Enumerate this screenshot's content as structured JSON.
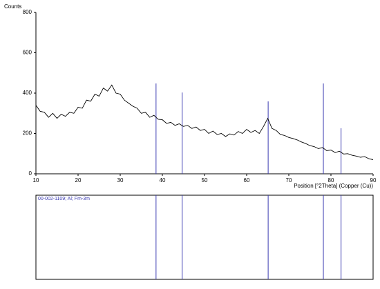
{
  "chart_data": {
    "type": "line",
    "y_label": "Counts",
    "x_label": "Position [°2Theta] (Copper (Cu))",
    "x": [
      10,
      11,
      12,
      13,
      14,
      15,
      16,
      17,
      18,
      19,
      20,
      21,
      22,
      23,
      24,
      25,
      26,
      27,
      28,
      29,
      30,
      31,
      32,
      33,
      34,
      35,
      36,
      37,
      38,
      39,
      40,
      41,
      42,
      43,
      44,
      45,
      46,
      47,
      48,
      49,
      50,
      51,
      52,
      53,
      54,
      55,
      56,
      57,
      58,
      59,
      60,
      61,
      62,
      63,
      64,
      65,
      66,
      67,
      68,
      69,
      70,
      71,
      72,
      73,
      74,
      75,
      76,
      77,
      78,
      79,
      80,
      81,
      82,
      83,
      84,
      85,
      86,
      87,
      88,
      89,
      90
    ],
    "series": [
      {
        "color": "#000000",
        "values": [
          340,
          310,
          305,
          280,
          300,
          275,
          295,
          285,
          305,
          300,
          330,
          325,
          365,
          360,
          395,
          385,
          425,
          410,
          440,
          400,
          395,
          365,
          350,
          335,
          325,
          300,
          305,
          280,
          290,
          270,
          268,
          250,
          255,
          240,
          248,
          235,
          240,
          225,
          232,
          215,
          220,
          200,
          212,
          195,
          200,
          185,
          198,
          192,
          210,
          200,
          220,
          205,
          215,
          200,
          235,
          275,
          225,
          215,
          195,
          190,
          180,
          175,
          168,
          158,
          150,
          140,
          135,
          125,
          130,
          115,
          118,
          105,
          112,
          98,
          100,
          92,
          88,
          82,
          85,
          75,
          70
        ]
      }
    ],
    "reference": {
      "label": "00-002-1109; Al; Fm-3m",
      "color": "#3a3ab0",
      "positions": [
        38.5,
        44.7,
        65.1,
        78.2,
        82.4
      ],
      "heights": [
        448,
        403,
        359,
        448,
        226
      ]
    },
    "xlim": [
      10,
      90
    ],
    "ylim": [
      0,
      800
    ],
    "xticks": [
      10,
      20,
      30,
      40,
      50,
      60,
      70,
      80,
      90
    ],
    "yticks": [
      0,
      200,
      400,
      600,
      800
    ]
  }
}
